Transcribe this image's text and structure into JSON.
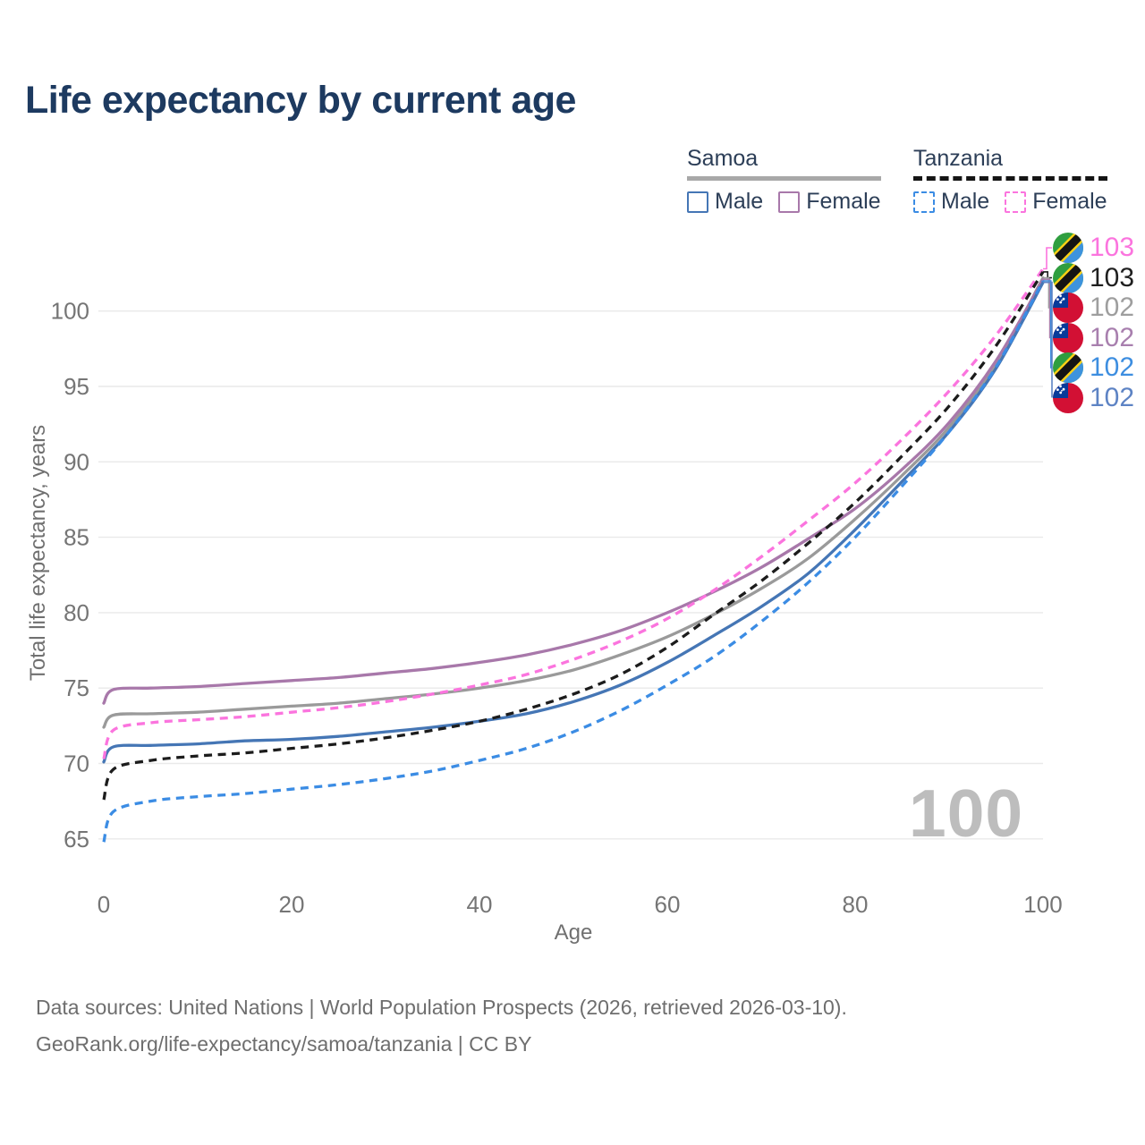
{
  "title": "Life expectancy by current age",
  "legend": {
    "groups": [
      {
        "label": "Samoa",
        "line_style": "solid",
        "underline_color": "#a8a8a8",
        "items": [
          {
            "label": "Male",
            "color": "#4576b5",
            "dash": "solid"
          },
          {
            "label": "Female",
            "color": "#a878aa",
            "dash": "solid"
          }
        ]
      },
      {
        "label": "Tanzania",
        "line_style": "dashed",
        "underline_color": "#151515",
        "items": [
          {
            "label": "Male",
            "color": "#3b8ce4",
            "dash": "dashed"
          },
          {
            "label": "Female",
            "color": "#fb74de",
            "dash": "dashed"
          }
        ]
      }
    ]
  },
  "chart_data": {
    "type": "line",
    "title": "Life expectancy by current age",
    "xlabel": "Age",
    "ylabel": "Total life expectancy, years",
    "x_ticks": [
      0,
      20,
      40,
      60,
      80,
      100
    ],
    "y_ticks": [
      65,
      70,
      75,
      80,
      85,
      90,
      95,
      100
    ],
    "xlim": [
      0,
      100
    ],
    "ylim": [
      64,
      103.5
    ],
    "grid": "horizontal",
    "legend_position": "top-right",
    "ages": [
      0,
      1,
      5,
      10,
      15,
      20,
      25,
      30,
      35,
      40,
      45,
      50,
      55,
      60,
      65,
      70,
      75,
      80,
      85,
      90,
      95,
      100
    ],
    "series": [
      {
        "name": "Samoa Total",
        "country": "Samoa",
        "sex": "both",
        "color": "#9a9a9a",
        "dash": "solid",
        "values": [
          72.4,
          73.2,
          73.3,
          73.4,
          73.6,
          73.8,
          74.0,
          74.3,
          74.6,
          75.0,
          75.5,
          76.2,
          77.2,
          78.4,
          79.9,
          81.6,
          83.6,
          86.2,
          89.1,
          92.3,
          96.5,
          102.2
        ]
      },
      {
        "name": "Samoa Female",
        "country": "Samoa",
        "sex": "female",
        "color": "#a878aa",
        "dash": "solid",
        "values": [
          74.0,
          74.9,
          75.0,
          75.1,
          75.3,
          75.5,
          75.7,
          76.0,
          76.3,
          76.7,
          77.2,
          77.9,
          78.8,
          80.0,
          81.4,
          83.0,
          84.9,
          86.9,
          89.5,
          92.6,
          96.7,
          102.1
        ]
      },
      {
        "name": "Samoa Male",
        "country": "Samoa",
        "sex": "male",
        "color": "#4576b5",
        "dash": "solid",
        "values": [
          70.1,
          71.1,
          71.2,
          71.3,
          71.5,
          71.6,
          71.8,
          72.1,
          72.4,
          72.8,
          73.3,
          74.1,
          75.2,
          76.7,
          78.5,
          80.4,
          82.6,
          85.5,
          88.7,
          92.0,
          96.2,
          101.9
        ]
      },
      {
        "name": "Tanzania Female",
        "country": "Tanzania",
        "sex": "female",
        "color": "#fb74de",
        "dash": "dashed",
        "values": [
          70.3,
          72.2,
          72.7,
          72.9,
          73.1,
          73.4,
          73.7,
          74.1,
          74.6,
          75.2,
          75.9,
          76.9,
          78.1,
          79.6,
          81.5,
          83.7,
          86.1,
          88.6,
          91.5,
          94.7,
          98.4,
          102.8
        ]
      },
      {
        "name": "Tanzania Total",
        "country": "Tanzania",
        "sex": "both",
        "color": "#1c1c1c",
        "dash": "dashed",
        "values": [
          67.6,
          69.6,
          70.2,
          70.5,
          70.7,
          71.0,
          71.3,
          71.7,
          72.2,
          72.8,
          73.6,
          74.6,
          75.9,
          77.7,
          79.9,
          82.1,
          84.6,
          87.3,
          90.4,
          93.7,
          97.7,
          102.6
        ]
      },
      {
        "name": "Tanzania Male",
        "country": "Tanzania",
        "sex": "male",
        "color": "#3b8ce4",
        "dash": "dashed",
        "values": [
          64.8,
          66.8,
          67.5,
          67.8,
          68.0,
          68.3,
          68.6,
          69.0,
          69.5,
          70.2,
          71.0,
          72.1,
          73.5,
          75.2,
          77.1,
          79.4,
          82.0,
          85.0,
          88.4,
          92.0,
          96.3,
          102.0
        ]
      }
    ],
    "end_labels": [
      {
        "value": "103",
        "color": "#fb74de",
        "flag": "tanzania",
        "series": "Tanzania Female"
      },
      {
        "value": "103",
        "color": "#1f1f1f",
        "flag": "tanzania",
        "series": "Tanzania Total"
      },
      {
        "value": "102",
        "color": "#9e9e9e",
        "flag": "samoa",
        "series": "Samoa Total"
      },
      {
        "value": "102",
        "color": "#a87fae",
        "flag": "samoa",
        "series": "Samoa Female"
      },
      {
        "value": "102",
        "color": "#3d8ee0",
        "flag": "tanzania",
        "series": "Tanzania Male"
      },
      {
        "value": "102",
        "color": "#5d83c4",
        "flag": "samoa",
        "series": "Samoa Male"
      }
    ],
    "watermark": "100"
  },
  "footer": {
    "line1": "Data sources: United Nations | World Population Prospects (2026, retrieved 2026-03-10).",
    "line2": "GeoRank.org/life-expectancy/samoa/tanzania | CC BY"
  }
}
